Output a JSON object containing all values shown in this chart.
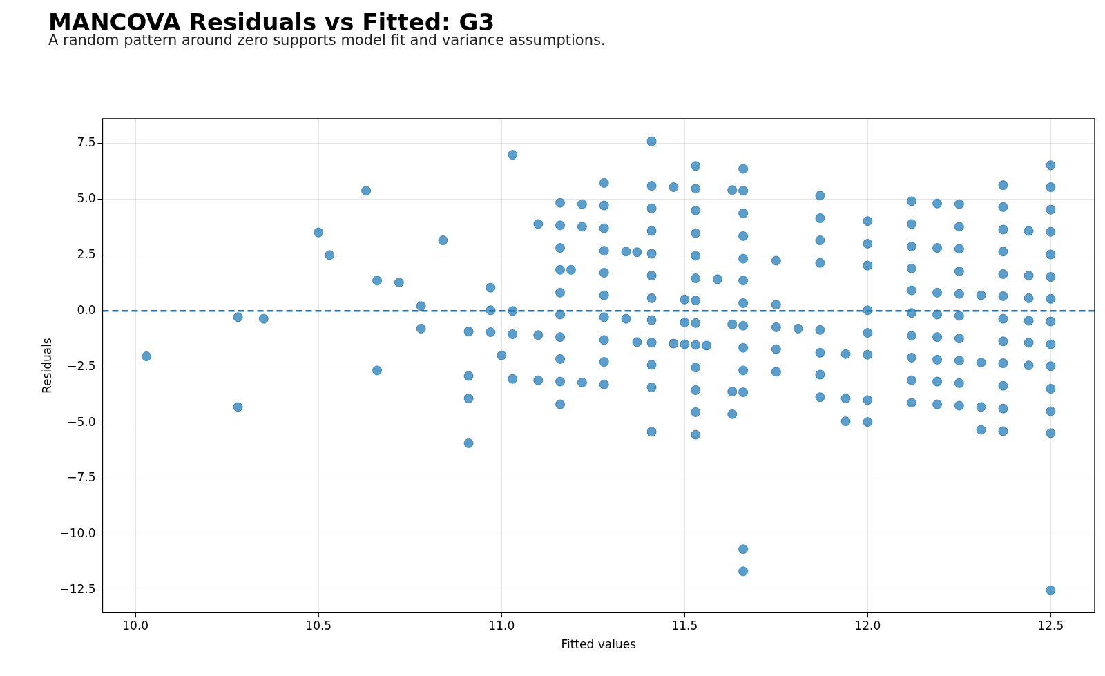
{
  "chart_data": {
    "type": "scatter",
    "title": "MANCOVA Residuals vs Fitted: G3",
    "subtitle": "A random pattern around zero supports model fit and variance assumptions.",
    "xlabel": "Fitted values",
    "ylabel": "Residuals",
    "xlim": [
      9.91,
      12.62
    ],
    "ylim": [
      -13.5,
      8.6
    ],
    "xticks": [
      {
        "value": 10,
        "label": "10.0"
      },
      10.5,
      {
        "value": 11,
        "label": "11.0"
      },
      11.5,
      {
        "value": 12,
        "label": "12.0"
      },
      12.5
    ],
    "yticks": [
      {
        "value": -12.5,
        "label": "−12.5"
      },
      {
        "value": -10,
        "label": "−10.0"
      },
      {
        "value": -7.5,
        "label": "−7.5"
      },
      {
        "value": -5,
        "label": "−5.0"
      },
      {
        "value": -2.5,
        "label": "−2.5"
      },
      {
        "value": 0,
        "label": "0.0"
      },
      2.5,
      {
        "value": 5,
        "label": "5.0"
      },
      7.5
    ],
    "grid": true,
    "marker": "circle",
    "legend": false,
    "ref_lines": [
      {
        "axis": "y",
        "value": 0,
        "color": "#1f77b4",
        "line_style": "dashed"
      }
    ],
    "series": [
      {
        "color": "#1f77b4",
        "x": [
          10.03,
          10.28,
          10.28,
          10.35,
          10.5,
          10.53,
          10.63,
          10.66,
          10.66,
          10.72,
          10.78,
          10.78,
          10.84,
          10.91,
          10.91,
          10.91,
          10.91,
          10.97,
          10.97,
          10.97,
          11.0,
          11.03,
          11.03,
          11.03,
          11.03,
          11.1,
          11.1,
          11.1,
          11.16,
          11.16,
          11.16,
          11.16,
          11.16,
          11.16,
          11.16,
          11.16,
          11.16,
          11.16,
          11.19,
          11.22,
          11.22,
          11.22,
          11.28,
          11.28,
          11.28,
          11.28,
          11.28,
          11.28,
          11.28,
          11.28,
          11.28,
          11.28,
          11.34,
          11.34,
          11.37,
          11.37,
          11.41,
          11.41,
          11.41,
          11.41,
          11.41,
          11.41,
          11.41,
          11.41,
          11.41,
          11.41,
          11.41,
          11.41,
          11.47,
          11.47,
          11.5,
          11.5,
          11.5,
          11.53,
          11.53,
          11.53,
          11.53,
          11.53,
          11.53,
          11.53,
          11.53,
          11.53,
          11.53,
          11.53,
          11.53,
          11.53,
          11.56,
          11.59,
          11.63,
          11.63,
          11.63,
          11.63,
          11.66,
          11.66,
          11.66,
          11.66,
          11.66,
          11.66,
          11.66,
          11.66,
          11.66,
          11.66,
          11.66,
          11.66,
          11.66,
          11.75,
          11.75,
          11.75,
          11.75,
          11.75,
          11.81,
          11.87,
          11.87,
          11.87,
          11.87,
          11.87,
          11.87,
          11.87,
          11.87,
          11.94,
          11.94,
          11.94,
          12.0,
          12.0,
          12.0,
          12.0,
          12.0,
          12.0,
          12.0,
          12.0,
          12.12,
          12.12,
          12.12,
          12.12,
          12.12,
          12.12,
          12.12,
          12.12,
          12.12,
          12.12,
          12.19,
          12.19,
          12.19,
          12.19,
          12.19,
          12.19,
          12.19,
          12.19,
          12.25,
          12.25,
          12.25,
          12.25,
          12.25,
          12.25,
          12.25,
          12.25,
          12.25,
          12.25,
          12.31,
          12.31,
          12.31,
          12.31,
          12.37,
          12.37,
          12.37,
          12.37,
          12.37,
          12.37,
          12.37,
          12.37,
          12.37,
          12.37,
          12.37,
          12.37,
          12.44,
          12.44,
          12.44,
          12.44,
          12.44,
          12.44,
          12.5,
          12.5,
          12.5,
          12.5,
          12.5,
          12.5,
          12.5,
          12.5,
          12.5,
          12.5,
          12.5,
          12.5,
          12.5,
          12.5
        ],
        "values": [
          -2.03,
          -0.28,
          -4.3,
          -0.35,
          3.51,
          2.5,
          5.38,
          1.36,
          -2.66,
          1.27,
          0.22,
          -0.79,
          3.16,
          -0.92,
          -2.91,
          -3.92,
          -5.92,
          1.04,
          0.03,
          -0.95,
          -1.99,
          6.99,
          0.0,
          -1.04,
          -3.04,
          3.89,
          -1.08,
          -3.1,
          4.84,
          3.83,
          2.82,
          1.84,
          0.82,
          -0.16,
          -1.17,
          -2.15,
          -3.16,
          -4.18,
          1.84,
          4.78,
          3.77,
          -3.2,
          5.73,
          4.72,
          3.7,
          2.69,
          1.71,
          0.7,
          -0.28,
          -1.3,
          -2.28,
          -3.29,
          2.66,
          -0.35,
          2.63,
          -1.39,
          7.59,
          5.6,
          4.59,
          3.58,
          2.56,
          1.58,
          0.57,
          -0.41,
          -1.42,
          -2.41,
          -3.42,
          -5.41,
          5.54,
          -1.46,
          0.51,
          -0.51,
          -1.49,
          6.49,
          5.47,
          4.49,
          3.48,
          2.47,
          1.46,
          0.47,
          -0.54,
          -1.52,
          -2.53,
          -3.54,
          -4.53,
          -5.54,
          -1.55,
          1.42,
          5.41,
          -0.6,
          -3.61,
          -4.62,
          6.36,
          5.38,
          4.37,
          3.35,
          2.34,
          1.36,
          0.35,
          -0.66,
          -1.65,
          -2.66,
          -3.64,
          -10.66,
          -11.65,
          2.25,
          0.28,
          -0.73,
          -1.71,
          -2.72,
          -0.79,
          5.16,
          4.15,
          3.16,
          2.15,
          -0.85,
          -1.87,
          -2.85,
          -3.86,
          -1.93,
          -3.92,
          -4.94,
          4.02,
          3.01,
          2.03,
          0.03,
          -0.98,
          -1.96,
          -3.99,
          -4.97,
          4.91,
          3.89,
          2.88,
          1.9,
          0.92,
          -0.09,
          -1.11,
          -2.09,
          -3.1,
          -4.11,
          4.81,
          2.82,
          0.82,
          -0.16,
          -1.17,
          -2.18,
          -3.16,
          -4.18,
          4.78,
          3.77,
          2.78,
          1.77,
          0.76,
          -0.22,
          -1.23,
          -2.22,
          -3.23,
          -4.24,
          0.7,
          -2.31,
          -4.3,
          -5.32,
          5.63,
          4.65,
          3.64,
          2.66,
          1.65,
          0.66,
          -0.35,
          -1.36,
          -2.34,
          -3.35,
          -4.37,
          -5.38,
          3.58,
          1.58,
          0.57,
          -0.44,
          -1.42,
          -2.44,
          6.52,
          5.54,
          4.53,
          3.54,
          2.53,
          1.52,
          0.54,
          -0.47,
          -1.49,
          -2.47,
          -3.48,
          -4.49,
          -5.47,
          -12.5
        ]
      }
    ]
  }
}
